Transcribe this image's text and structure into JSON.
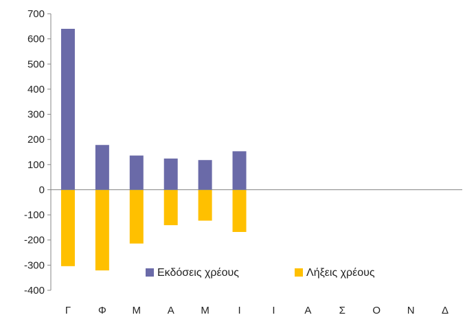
{
  "chart_data": {
    "type": "bar",
    "categories": [
      "Γ",
      "Φ",
      "Μ",
      "Α",
      "Μ",
      "Ι",
      "Ι",
      "Α",
      "Σ",
      "Ο",
      "Ν",
      "Δ"
    ],
    "series": [
      {
        "name": "Εκδόσεις χρέους",
        "color": "#6a6aa8",
        "values": [
          640,
          178,
          136,
          124,
          118,
          153,
          null,
          null,
          null,
          null,
          null,
          null
        ]
      },
      {
        "name": "Λήξεις χρέους",
        "color": "#ffc000",
        "values": [
          -304,
          -321,
          -214,
          -141,
          -123,
          -168,
          null,
          null,
          null,
          null,
          null,
          null
        ]
      }
    ],
    "ylim": [
      -400,
      700
    ],
    "yticks": [
      700,
      600,
      500,
      400,
      300,
      200,
      100,
      0,
      -100,
      -200,
      -300,
      -400
    ],
    "grid": false,
    "legend": "bottom-right",
    "title": "",
    "xlabel": "",
    "ylabel": ""
  }
}
